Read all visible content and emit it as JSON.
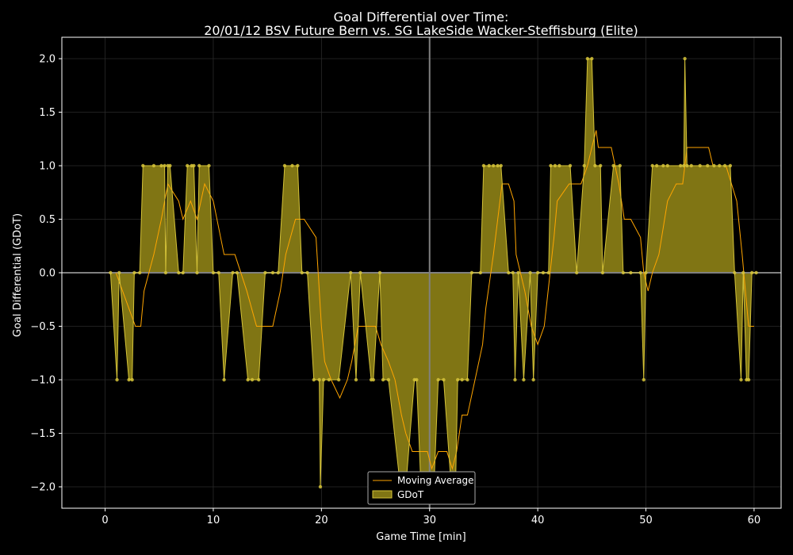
{
  "chart_data": {
    "type": "area",
    "title_line1": "Goal Differential over Time:",
    "title_line2": "20/01/12 BSV Future Bern  vs.  SG LakeSide Wacker-Steffisburg (Elite)",
    "xlabel": "Game Time [min]",
    "ylabel": "Goal Differential (GDoT)",
    "xlim": [
      -4,
      62.5
    ],
    "ylim": [
      -2.2,
      2.2
    ],
    "x_ticks": [
      0,
      10,
      20,
      30,
      40,
      50,
      60
    ],
    "y_ticks": [
      -2.0,
      -1.5,
      -1.0,
      -0.5,
      0.0,
      0.5,
      1.0,
      1.5,
      2.0
    ],
    "x_tick_labels": [
      "0",
      "10",
      "20",
      "30",
      "40",
      "50",
      "60"
    ],
    "y_tick_labels": [
      "−2.0",
      "−1.5",
      "−1.0",
      "−0.5",
      "0.0",
      "0.5",
      "1.0",
      "1.5",
      "2.0"
    ],
    "grid": true,
    "vline_x": 30,
    "legend_position": "bottom-center",
    "colors": {
      "background": "#000000",
      "fill": "#807514",
      "gdot_line": "#d4c238",
      "moving_average": "#ffa500",
      "axes": "#ffffff",
      "grid": "#2a2a2a",
      "zero_line": "#808080"
    },
    "series": [
      {
        "name": "GDoT",
        "points": [
          [
            0.5,
            0
          ],
          [
            1.1,
            -1
          ],
          [
            1.3,
            0
          ],
          [
            2.2,
            -1
          ],
          [
            2.5,
            -1
          ],
          [
            2.7,
            0
          ],
          [
            3.2,
            0
          ],
          [
            3.5,
            1
          ],
          [
            4.5,
            1
          ],
          [
            5.2,
            1
          ],
          [
            5.5,
            1
          ],
          [
            5.6,
            0
          ],
          [
            5.8,
            1
          ],
          [
            6.0,
            1
          ],
          [
            6.8,
            0
          ],
          [
            7.2,
            0
          ],
          [
            7.6,
            1
          ],
          [
            8.0,
            1
          ],
          [
            8.2,
            1
          ],
          [
            8.5,
            0
          ],
          [
            8.7,
            1
          ],
          [
            9.6,
            1
          ],
          [
            10.0,
            0
          ],
          [
            10.5,
            0
          ],
          [
            11.0,
            -1
          ],
          [
            11.8,
            0
          ],
          [
            12.2,
            0
          ],
          [
            13.2,
            -1
          ],
          [
            13.6,
            -1
          ],
          [
            14.2,
            -1
          ],
          [
            14.8,
            0
          ],
          [
            15.5,
            0
          ],
          [
            16.0,
            0
          ],
          [
            16.6,
            1
          ],
          [
            17.3,
            1
          ],
          [
            17.8,
            1
          ],
          [
            18.2,
            0
          ],
          [
            18.7,
            0
          ],
          [
            19.3,
            -1
          ],
          [
            19.8,
            -1
          ],
          [
            19.9,
            -2
          ],
          [
            20.2,
            -1
          ],
          [
            20.7,
            -1
          ],
          [
            21.6,
            -1
          ],
          [
            22.7,
            0
          ],
          [
            23.2,
            -1
          ],
          [
            23.6,
            0
          ],
          [
            24.6,
            -1
          ],
          [
            24.8,
            -1
          ],
          [
            25.4,
            0
          ],
          [
            25.7,
            -1
          ],
          [
            26.2,
            -1
          ],
          [
            27.3,
            -2
          ],
          [
            27.8,
            -2
          ],
          [
            28.6,
            -1
          ],
          [
            28.8,
            -1
          ],
          [
            29.2,
            -2
          ],
          [
            30.0,
            -2
          ],
          [
            30.4,
            -2
          ],
          [
            30.8,
            -1
          ],
          [
            31.3,
            -1
          ],
          [
            32.0,
            -2
          ],
          [
            32.4,
            -2
          ],
          [
            32.6,
            -1
          ],
          [
            33.0,
            -1
          ],
          [
            33.5,
            -1
          ],
          [
            33.9,
            0
          ],
          [
            34.7,
            0
          ],
          [
            35.0,
            1
          ],
          [
            35.5,
            1
          ],
          [
            35.9,
            1
          ],
          [
            36.3,
            1
          ],
          [
            36.6,
            1
          ],
          [
            37.3,
            0
          ],
          [
            37.7,
            0
          ],
          [
            37.9,
            -1
          ],
          [
            38.2,
            0
          ],
          [
            38.7,
            -1
          ],
          [
            39.3,
            0
          ],
          [
            39.6,
            -1
          ],
          [
            40.0,
            0
          ],
          [
            40.5,
            0
          ],
          [
            41.0,
            0
          ],
          [
            41.2,
            1
          ],
          [
            41.6,
            1
          ],
          [
            42.0,
            1
          ],
          [
            43.0,
            1
          ],
          [
            43.6,
            0
          ],
          [
            44.3,
            1
          ],
          [
            44.6,
            2
          ],
          [
            45.0,
            2
          ],
          [
            45.3,
            1
          ],
          [
            45.8,
            1
          ],
          [
            46.0,
            0
          ],
          [
            47.0,
            1
          ],
          [
            47.6,
            1
          ],
          [
            47.9,
            0
          ],
          [
            48.6,
            0
          ],
          [
            49.5,
            0
          ],
          [
            49.8,
            -1
          ],
          [
            50.0,
            0
          ],
          [
            50.6,
            1
          ],
          [
            51.0,
            1
          ],
          [
            51.6,
            1
          ],
          [
            52.0,
            1
          ],
          [
            53.2,
            1
          ],
          [
            53.5,
            1
          ],
          [
            53.6,
            2
          ],
          [
            53.8,
            1
          ],
          [
            54.2,
            1
          ],
          [
            55.0,
            1
          ],
          [
            55.7,
            1
          ],
          [
            56.3,
            1
          ],
          [
            56.8,
            1
          ],
          [
            57.3,
            1
          ],
          [
            57.8,
            1
          ],
          [
            58.2,
            0
          ],
          [
            58.8,
            -1
          ],
          [
            59.0,
            0
          ],
          [
            59.3,
            -1
          ],
          [
            59.5,
            -1
          ],
          [
            59.8,
            0
          ],
          [
            60.2,
            0
          ]
        ]
      },
      {
        "name": "Moving Average",
        "points": [
          [
            1.0,
            0
          ],
          [
            2.8,
            -0.5
          ],
          [
            3.3,
            -0.5
          ],
          [
            3.6,
            -0.17
          ],
          [
            4.5,
            0.17
          ],
          [
            5.2,
            0.5
          ],
          [
            5.8,
            0.83
          ],
          [
            6.8,
            0.67
          ],
          [
            7.2,
            0.5
          ],
          [
            7.9,
            0.67
          ],
          [
            8.5,
            0.5
          ],
          [
            9.2,
            0.83
          ],
          [
            10.0,
            0.67
          ],
          [
            11.0,
            0.17
          ],
          [
            12.0,
            0.17
          ],
          [
            13.1,
            -0.17
          ],
          [
            14.0,
            -0.5
          ],
          [
            15.1,
            -0.5
          ],
          [
            15.5,
            -0.5
          ],
          [
            16.2,
            -0.17
          ],
          [
            16.7,
            0.17
          ],
          [
            17.6,
            0.5
          ],
          [
            18.4,
            0.5
          ],
          [
            19.5,
            0.33
          ],
          [
            20.0,
            -0.5
          ],
          [
            20.3,
            -0.83
          ],
          [
            20.9,
            -1.0
          ],
          [
            21.7,
            -1.17
          ],
          [
            22.4,
            -1.0
          ],
          [
            22.8,
            -0.83
          ],
          [
            23.4,
            -0.5
          ],
          [
            24.0,
            -0.5
          ],
          [
            25.0,
            -0.5
          ],
          [
            25.5,
            -0.67
          ],
          [
            26.2,
            -0.83
          ],
          [
            26.8,
            -1.0
          ],
          [
            27.4,
            -1.33
          ],
          [
            27.8,
            -1.5
          ],
          [
            28.4,
            -1.67
          ],
          [
            29.0,
            -1.67
          ],
          [
            29.8,
            -1.67
          ],
          [
            30.2,
            -1.83
          ],
          [
            30.8,
            -1.67
          ],
          [
            31.6,
            -1.67
          ],
          [
            32.1,
            -1.83
          ],
          [
            32.5,
            -1.67
          ],
          [
            33.0,
            -1.33
          ],
          [
            33.5,
            -1.33
          ],
          [
            34.2,
            -1.0
          ],
          [
            34.9,
            -0.67
          ],
          [
            35.2,
            -0.33
          ],
          [
            35.9,
            0.17
          ],
          [
            36.3,
            0.5
          ],
          [
            36.7,
            0.83
          ],
          [
            37.3,
            0.83
          ],
          [
            37.8,
            0.67
          ],
          [
            38.0,
            0.17
          ],
          [
            38.8,
            -0.17
          ],
          [
            39.4,
            -0.5
          ],
          [
            40.0,
            -0.67
          ],
          [
            40.6,
            -0.5
          ],
          [
            41.5,
            0.33
          ],
          [
            41.8,
            0.67
          ],
          [
            42.9,
            0.83
          ],
          [
            43.5,
            0.83
          ],
          [
            44.0,
            0.83
          ],
          [
            44.6,
            1.0
          ],
          [
            45.0,
            1.17
          ],
          [
            45.4,
            1.33
          ],
          [
            45.6,
            1.17
          ],
          [
            46.8,
            1.17
          ],
          [
            47.5,
            0.83
          ],
          [
            48.0,
            0.5
          ],
          [
            48.6,
            0.5
          ],
          [
            49.5,
            0.33
          ],
          [
            49.8,
            0.0
          ],
          [
            50.2,
            -0.17
          ],
          [
            50.6,
            0.0
          ],
          [
            51.2,
            0.17
          ],
          [
            52.0,
            0.67
          ],
          [
            52.8,
            0.83
          ],
          [
            53.4,
            0.83
          ],
          [
            53.8,
            1.17
          ],
          [
            54.5,
            1.17
          ],
          [
            55.8,
            1.17
          ],
          [
            56.2,
            1.0
          ],
          [
            56.8,
            1.0
          ],
          [
            57.4,
            1.0
          ],
          [
            58.4,
            0.67
          ],
          [
            58.9,
            0.17
          ],
          [
            59.2,
            -0.17
          ],
          [
            59.5,
            -0.5
          ],
          [
            60.0,
            -0.5
          ]
        ]
      }
    ],
    "legend": [
      {
        "label": "Moving Average",
        "kind": "line"
      },
      {
        "label": "GDoT",
        "kind": "patch"
      }
    ]
  }
}
